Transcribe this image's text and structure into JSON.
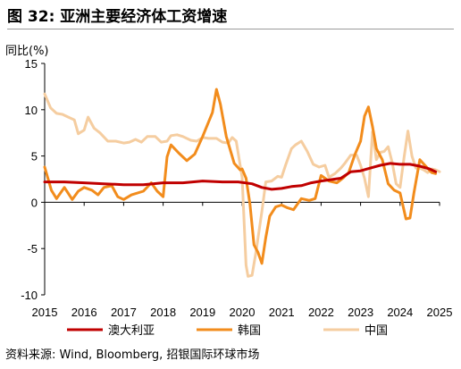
{
  "header": {
    "title": "图 32: 亚洲主要经济体工资增速",
    "y_unit": "同比(%)"
  },
  "footer": {
    "source": "资料来源: Wind, Bloomberg, 招银国际环球市场"
  },
  "colors": {
    "australia": "#c00000",
    "korea": "#f28c1c",
    "china": "#f5cda0"
  },
  "chart_data": {
    "type": "line",
    "title": "图 32: 亚洲主要经济体工资增速",
    "ylabel": "同比(%)",
    "xlim": [
      2015,
      2025
    ],
    "ylim": [
      -10,
      15
    ],
    "x_ticks": [
      2015,
      2016,
      2017,
      2018,
      2019,
      2020,
      2021,
      2022,
      2023,
      2024,
      2025
    ],
    "y_ticks": [
      -10,
      -5,
      0,
      5,
      10,
      15
    ],
    "grid": false,
    "legend_position": "bottom",
    "series": [
      {
        "name": "澳大利亚",
        "color": "#c00000",
        "points": [
          [
            2015.0,
            2.2
          ],
          [
            2015.5,
            2.2
          ],
          [
            2016.0,
            2.1
          ],
          [
            2016.5,
            2.0
          ],
          [
            2017.0,
            1.9
          ],
          [
            2017.5,
            1.9
          ],
          [
            2018.0,
            2.1
          ],
          [
            2018.5,
            2.1
          ],
          [
            2019.0,
            2.3
          ],
          [
            2019.5,
            2.2
          ],
          [
            2019.9,
            2.2
          ],
          [
            2020.25,
            2.0
          ],
          [
            2020.5,
            1.6
          ],
          [
            2020.75,
            1.4
          ],
          [
            2021.0,
            1.5
          ],
          [
            2021.25,
            1.7
          ],
          [
            2021.5,
            1.8
          ],
          [
            2021.75,
            2.1
          ],
          [
            2022.0,
            2.3
          ],
          [
            2022.5,
            2.6
          ],
          [
            2022.75,
            3.3
          ],
          [
            2023.0,
            3.4
          ],
          [
            2023.25,
            3.7
          ],
          [
            2023.5,
            4.0
          ],
          [
            2023.75,
            4.2
          ],
          [
            2024.0,
            4.1
          ],
          [
            2024.25,
            4.1
          ],
          [
            2024.5,
            3.9
          ],
          [
            2024.75,
            3.6
          ],
          [
            2024.9,
            3.3
          ]
        ]
      },
      {
        "name": "韩国",
        "color": "#f28c1c",
        "points": [
          [
            2015.0,
            3.8
          ],
          [
            2015.17,
            1.3
          ],
          [
            2015.3,
            0.4
          ],
          [
            2015.5,
            1.6
          ],
          [
            2015.7,
            0.3
          ],
          [
            2015.85,
            1.2
          ],
          [
            2016.0,
            1.6
          ],
          [
            2016.2,
            1.3
          ],
          [
            2016.35,
            0.8
          ],
          [
            2016.5,
            1.6
          ],
          [
            2016.7,
            1.8
          ],
          [
            2016.85,
            0.6
          ],
          [
            2017.0,
            0.3
          ],
          [
            2017.2,
            0.8
          ],
          [
            2017.5,
            1.2
          ],
          [
            2017.7,
            2.1
          ],
          [
            2017.85,
            1.2
          ],
          [
            2018.0,
            0.6
          ],
          [
            2018.1,
            4.9
          ],
          [
            2018.2,
            6.2
          ],
          [
            2018.4,
            5.3
          ],
          [
            2018.6,
            4.5
          ],
          [
            2018.8,
            5.2
          ],
          [
            2019.0,
            7.1
          ],
          [
            2019.25,
            9.7
          ],
          [
            2019.35,
            12.2
          ],
          [
            2019.45,
            10.6
          ],
          [
            2019.6,
            7.1
          ],
          [
            2019.8,
            4.2
          ],
          [
            2019.95,
            3.5
          ],
          [
            2020.0,
            3.6
          ],
          [
            2020.1,
            2.6
          ],
          [
            2020.2,
            -0.2
          ],
          [
            2020.3,
            -4.6
          ],
          [
            2020.4,
            -5.4
          ],
          [
            2020.5,
            -6.6
          ],
          [
            2020.6,
            -3.8
          ],
          [
            2020.7,
            -1.5
          ],
          [
            2020.85,
            -0.5
          ],
          [
            2021.0,
            -0.3
          ],
          [
            2021.15,
            -0.6
          ],
          [
            2021.3,
            -0.8
          ],
          [
            2021.5,
            0.4
          ],
          [
            2021.7,
            0.2
          ],
          [
            2021.85,
            0.4
          ],
          [
            2022.0,
            2.9
          ],
          [
            2022.2,
            2.3
          ],
          [
            2022.4,
            2.1
          ],
          [
            2022.55,
            2.6
          ],
          [
            2022.7,
            3.2
          ],
          [
            2022.85,
            5.1
          ],
          [
            2023.0,
            6.6
          ],
          [
            2023.1,
            9.3
          ],
          [
            2023.2,
            10.3
          ],
          [
            2023.3,
            8.2
          ],
          [
            2023.4,
            5.8
          ],
          [
            2023.55,
            4.6
          ],
          [
            2023.7,
            2.0
          ],
          [
            2023.85,
            1.3
          ],
          [
            2024.0,
            1.0
          ],
          [
            2024.15,
            -1.8
          ],
          [
            2024.25,
            -1.7
          ],
          [
            2024.35,
            1.0
          ],
          [
            2024.5,
            4.6
          ],
          [
            2024.65,
            3.9
          ],
          [
            2024.8,
            3.2
          ],
          [
            2024.9,
            3.1
          ]
        ]
      },
      {
        "name": "中国",
        "color": "#f5cda0",
        "points": [
          [
            2015.0,
            11.7
          ],
          [
            2015.15,
            10.2
          ],
          [
            2015.3,
            9.6
          ],
          [
            2015.45,
            9.5
          ],
          [
            2015.6,
            9.2
          ],
          [
            2015.75,
            8.9
          ],
          [
            2015.85,
            7.4
          ],
          [
            2016.0,
            7.8
          ],
          [
            2016.1,
            9.2
          ],
          [
            2016.25,
            8.0
          ],
          [
            2016.4,
            7.5
          ],
          [
            2016.6,
            6.6
          ],
          [
            2016.8,
            6.6
          ],
          [
            2017.0,
            6.4
          ],
          [
            2017.15,
            6.5
          ],
          [
            2017.3,
            6.8
          ],
          [
            2017.45,
            6.5
          ],
          [
            2017.6,
            7.1
          ],
          [
            2017.8,
            7.1
          ],
          [
            2017.95,
            6.5
          ],
          [
            2018.1,
            6.6
          ],
          [
            2018.2,
            7.2
          ],
          [
            2018.35,
            7.3
          ],
          [
            2018.5,
            7.1
          ],
          [
            2018.7,
            6.7
          ],
          [
            2018.85,
            6.6
          ],
          [
            2019.0,
            7.0
          ],
          [
            2019.15,
            6.9
          ],
          [
            2019.35,
            6.9
          ],
          [
            2019.5,
            6.5
          ],
          [
            2019.65,
            6.4
          ],
          [
            2019.75,
            7.0
          ],
          [
            2019.85,
            6.6
          ],
          [
            2020.0,
            2.7
          ],
          [
            2020.1,
            -6.8
          ],
          [
            2020.15,
            -8.0
          ],
          [
            2020.25,
            -7.9
          ],
          [
            2020.35,
            -5.4
          ],
          [
            2020.5,
            -1.0
          ],
          [
            2020.6,
            2.2
          ],
          [
            2020.75,
            2.3
          ],
          [
            2020.9,
            2.8
          ],
          [
            2021.0,
            2.7
          ],
          [
            2021.1,
            4.0
          ],
          [
            2021.25,
            5.8
          ],
          [
            2021.35,
            6.2
          ],
          [
            2021.5,
            6.6
          ],
          [
            2021.65,
            5.5
          ],
          [
            2021.8,
            4.1
          ],
          [
            2021.95,
            3.8
          ],
          [
            2022.1,
            4.0
          ],
          [
            2022.2,
            2.7
          ],
          [
            2022.35,
            3.1
          ],
          [
            2022.5,
            3.7
          ],
          [
            2022.6,
            4.2
          ],
          [
            2022.75,
            5.1
          ],
          [
            2022.9,
            5.1
          ],
          [
            2023.0,
            4.0
          ],
          [
            2023.1,
            2.6
          ],
          [
            2023.2,
            0.6
          ],
          [
            2023.3,
            7.6
          ],
          [
            2023.4,
            4.6
          ],
          [
            2023.5,
            5.4
          ],
          [
            2023.6,
            5.5
          ],
          [
            2023.7,
            6.0
          ],
          [
            2023.8,
            4.3
          ],
          [
            2023.9,
            2.0
          ],
          [
            2024.0,
            1.6
          ],
          [
            2024.1,
            4.8
          ],
          [
            2024.2,
            7.7
          ],
          [
            2024.3,
            5.0
          ],
          [
            2024.4,
            3.7
          ],
          [
            2024.5,
            3.7
          ],
          [
            2024.6,
            3.5
          ],
          [
            2024.7,
            3.2
          ],
          [
            2024.8,
            3.6
          ],
          [
            2024.9,
            3.5
          ],
          [
            2025.0,
            3.3
          ]
        ]
      }
    ]
  }
}
